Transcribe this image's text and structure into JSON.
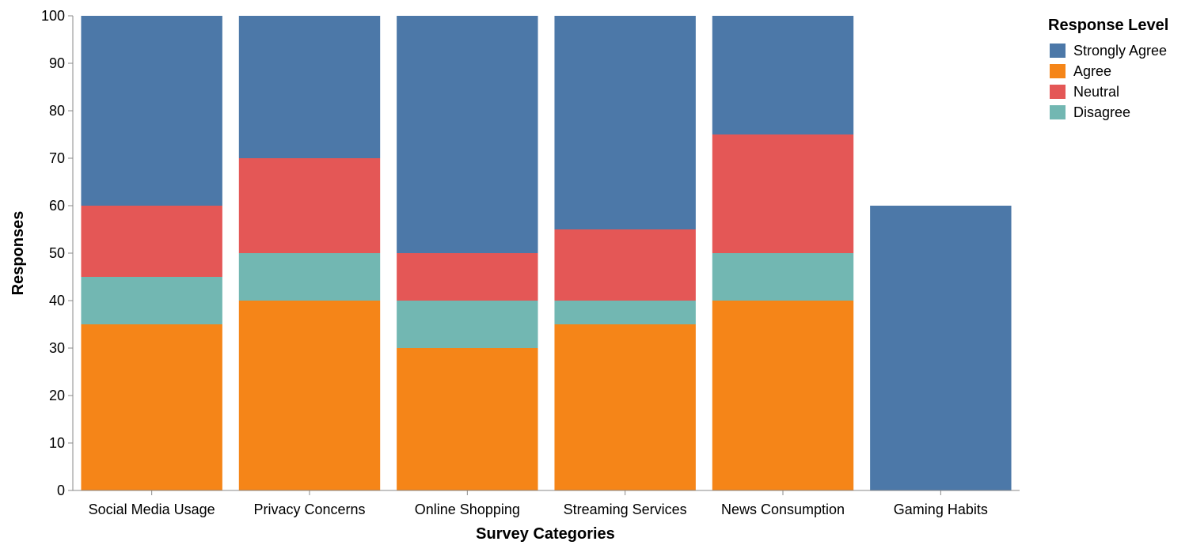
{
  "chart_data": {
    "type": "bar",
    "stacked": true,
    "xlabel": "Survey Categories",
    "ylabel": "Responses",
    "ylim": [
      0,
      100
    ],
    "yticks": [
      0,
      10,
      20,
      30,
      40,
      50,
      60,
      70,
      80,
      90,
      100
    ],
    "grid": false,
    "legend": {
      "title": "Response Level",
      "position": "top-right"
    },
    "categories": [
      "Social Media Usage",
      "Privacy Concerns",
      "Online Shopping",
      "Streaming Services",
      "News Consumption",
      "Gaming Habits"
    ],
    "series": [
      {
        "name": "Agree",
        "color": "#f58518",
        "values": [
          35,
          40,
          30,
          35,
          40,
          0
        ]
      },
      {
        "name": "Disagree",
        "color": "#72b7b2",
        "values": [
          10,
          10,
          10,
          5,
          10,
          0
        ]
      },
      {
        "name": "Neutral",
        "color": "#e45756",
        "values": [
          15,
          20,
          10,
          15,
          25,
          0
        ]
      },
      {
        "name": "Strongly Agree",
        "color": "#4c78a8",
        "values": [
          40,
          30,
          50,
          45,
          25,
          60
        ]
      }
    ],
    "legend_order": [
      "Strongly Agree",
      "Agree",
      "Neutral",
      "Disagree"
    ]
  }
}
